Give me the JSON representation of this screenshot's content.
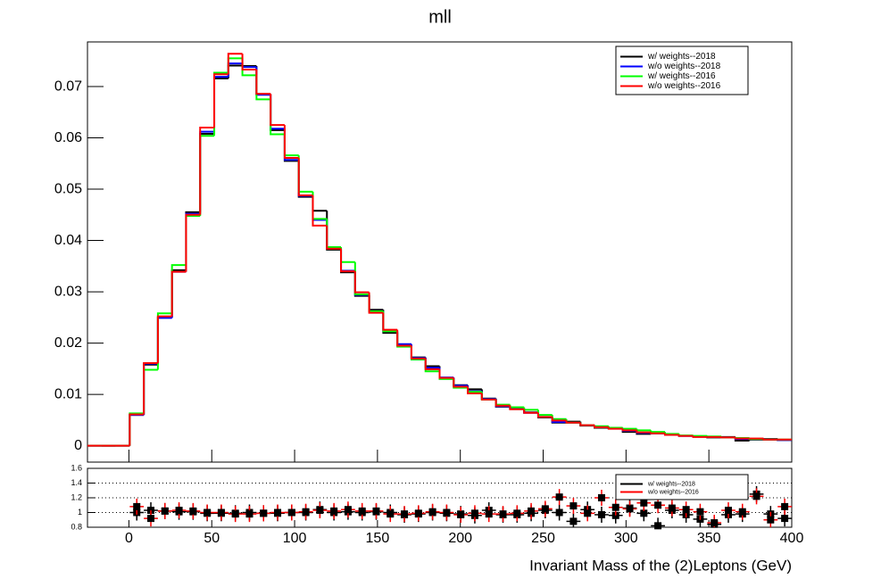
{
  "chart_data": [
    {
      "type": "histogram",
      "title": "mll",
      "bins": [
        -25,
        -16.5,
        -8,
        0.5,
        9,
        17.5,
        26,
        34.5,
        43,
        51.5,
        60,
        68.5,
        77,
        85.5,
        94,
        102.5,
        111,
        119.5,
        128,
        136.5,
        145,
        153.5,
        162,
        170.5,
        179,
        187.5,
        196,
        204.5,
        213,
        221.5,
        230,
        238.5,
        247,
        255.5,
        264,
        272.5,
        281,
        289.5,
        298,
        306.5,
        315,
        323.5,
        332,
        340.5,
        349,
        357.5,
        366,
        374.5,
        383,
        391.5,
        400
      ],
      "xlim": [
        -25,
        400
      ],
      "xticks": [
        0,
        50,
        100,
        150,
        200,
        250,
        300,
        350,
        400
      ],
      "ylim": [
        -0.0032,
        0.0787
      ],
      "yticks": [
        0,
        0.01,
        0.02,
        0.03,
        0.04,
        0.05,
        0.06,
        0.07
      ],
      "legend": "upper right",
      "series": [
        {
          "name": "w/ weights--2018",
          "color": "#000000",
          "values": [
            0,
            0,
            0,
            0.006,
            0.0158,
            0.025,
            0.0342,
            0.0455,
            0.0608,
            0.0716,
            0.0741,
            0.074,
            0.0685,
            0.0615,
            0.0555,
            0.0485,
            0.0458,
            0.0382,
            0.0338,
            0.0292,
            0.0265,
            0.022,
            0.0196,
            0.0172,
            0.0155,
            0.0131,
            0.0118,
            0.011,
            0.0092,
            0.0076,
            0.0073,
            0.0065,
            0.0055,
            0.0045,
            0.0047,
            0.0039,
            0.0035,
            0.0034,
            0.0027,
            0.0023,
            0.0024,
            0.0021,
            0.0019,
            0.0018,
            0.0016,
            0.0017,
            0.001,
            0.0012,
            0.0013,
            0.0011
          ]
        },
        {
          "name": "w/o weights--2018",
          "color": "#0000ff",
          "values": [
            0,
            0,
            0,
            0.006,
            0.016,
            0.0249,
            0.0339,
            0.0452,
            0.0612,
            0.0719,
            0.0745,
            0.0738,
            0.0684,
            0.0618,
            0.0557,
            0.0487,
            0.044,
            0.0385,
            0.0341,
            0.0294,
            0.0262,
            0.0223,
            0.0198,
            0.0171,
            0.0152,
            0.0133,
            0.0117,
            0.0106,
            0.0091,
            0.0077,
            0.0072,
            0.0064,
            0.0056,
            0.0046,
            0.0045,
            0.004,
            0.0036,
            0.0034,
            0.0029,
            0.0025,
            0.0024,
            0.0021,
            0.0019,
            0.0018,
            0.0017,
            0.0016,
            0.0013,
            0.0013,
            0.0012,
            0.0011
          ]
        },
        {
          "name": "w/ weights--2016",
          "color": "#00ff00",
          "values": [
            0,
            0,
            0,
            0.0063,
            0.0148,
            0.0258,
            0.0352,
            0.0448,
            0.0604,
            0.0727,
            0.0755,
            0.0722,
            0.0675,
            0.0607,
            0.0566,
            0.0495,
            0.0442,
            0.0387,
            0.0358,
            0.0295,
            0.0262,
            0.0223,
            0.0193,
            0.0168,
            0.0145,
            0.013,
            0.0113,
            0.0105,
            0.009,
            0.008,
            0.0075,
            0.007,
            0.006,
            0.0052,
            0.0045,
            0.004,
            0.0038,
            0.0035,
            0.0033,
            0.003,
            0.0027,
            0.0023,
            0.002,
            0.0019,
            0.0018,
            0.0016,
            0.0015,
            0.0013,
            0.0012,
            0.0012
          ]
        },
        {
          "name": "w/o weights--2016",
          "color": "#ff0000",
          "values": [
            0,
            0,
            0,
            0.0061,
            0.0161,
            0.0252,
            0.0339,
            0.045,
            0.062,
            0.0724,
            0.0764,
            0.0733,
            0.0686,
            0.0625,
            0.0561,
            0.0488,
            0.0429,
            0.0384,
            0.034,
            0.0299,
            0.0259,
            0.0226,
            0.0195,
            0.017,
            0.0149,
            0.0132,
            0.0115,
            0.0102,
            0.009,
            0.0078,
            0.0071,
            0.0064,
            0.0056,
            0.0049,
            0.0045,
            0.004,
            0.0036,
            0.0033,
            0.003,
            0.0026,
            0.0024,
            0.0021,
            0.0019,
            0.0017,
            0.0017,
            0.0016,
            0.0014,
            0.0014,
            0.0012,
            0.0012
          ]
        }
      ]
    },
    {
      "type": "ratio",
      "xlabel": "Invariant Mass of the (2)Leptons (GeV)",
      "xlim": [
        -25,
        400
      ],
      "xticks": [
        0,
        50,
        100,
        150,
        200,
        250,
        300,
        350,
        400
      ],
      "ylim": [
        0.8,
        1.6
      ],
      "yticks": [
        0.8,
        1,
        1.2,
        1.4,
        1.6
      ],
      "grid": true,
      "marker_color": "#000000",
      "legend": "upper right",
      "series": [
        {
          "name": "w/ weights--2018",
          "color": "#000000",
          "values": [
            null,
            null,
            null,
            1.0,
            1.03,
            1.02,
            1.01,
            1.01,
            0.99,
            0.99,
            0.99,
            1.0,
            0.99,
            0.99,
            1.0,
            1.0,
            1.04,
            1.0,
            1.01,
            1.0,
            1.01,
            1.0,
            0.97,
            0.98,
            1.0,
            0.99,
            0.98,
            0.96,
            1.03,
            0.97,
            0.97,
            0.99,
            1.03,
            1.0,
            0.88,
            1.04,
            0.97,
            0.96,
            1.06,
            0.99,
            0.82,
            1.03,
            0.97,
            0.91,
            0.84,
            0.97,
            0.98,
            1.25,
            0.98,
            0.92
          ]
        },
        {
          "name": "w/o weights--2016",
          "color": "#ff0000",
          "values": [
            null,
            null,
            null,
            1.08,
            0.92,
            1.02,
            1.03,
            1.02,
            1.0,
            1.0,
            0.98,
            0.98,
            0.99,
            1.0,
            1.0,
            1.01,
            1.03,
            1.02,
            1.04,
            1.02,
            1.02,
            0.98,
            0.98,
            0.99,
            1.01,
            1.0,
            0.97,
            0.99,
            0.98,
            0.98,
            0.99,
            1.02,
            1.05,
            1.21,
            1.09,
            0.99,
            1.2,
            1.07,
            1.05,
            1.13,
            1.1,
            1.06,
            1.04,
            1.01,
            0.86,
            1.03,
            1.01,
            1.22,
            0.9,
            1.08
          ]
        }
      ]
    }
  ]
}
